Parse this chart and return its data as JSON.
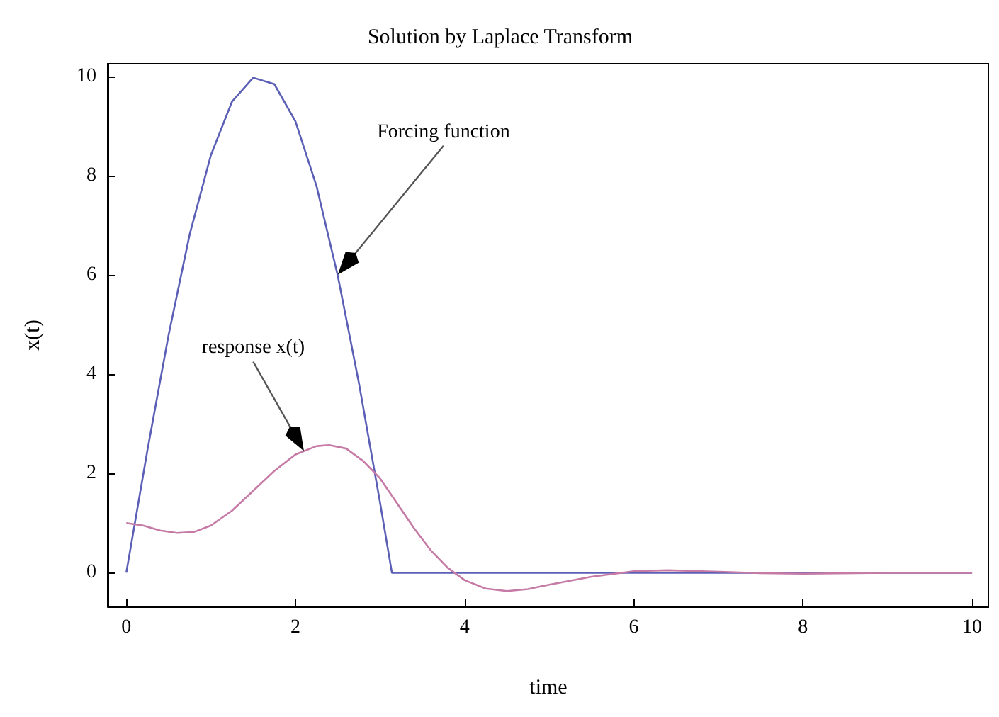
{
  "chart_data": {
    "type": "line",
    "title": "Solution by Laplace Transform",
    "xlabel": "time",
    "ylabel": "x(t)",
    "xlim": [
      -0.22,
      10.2
    ],
    "ylim": [
      -0.68,
      10.25
    ],
    "xticks": [
      0,
      2,
      4,
      6,
      8,
      10
    ],
    "yticks": [
      0,
      2,
      4,
      6,
      8,
      10
    ],
    "grid": false,
    "marker": "none",
    "line_style": "solid",
    "series": [
      {
        "color": "#5b5fb5",
        "x": [
          0,
          0.25,
          0.5,
          0.75,
          1,
          1.25,
          1.5,
          1.75,
          2,
          2.25,
          2.5,
          2.75,
          3,
          3.14,
          10
        ],
        "values": [
          0,
          2.47,
          4.79,
          6.82,
          8.41,
          9.49,
          9.97,
          9.84,
          9.09,
          7.78,
          5.98,
          3.82,
          1.41,
          0,
          0
        ]
      },
      {
        "color": "#c67aa6",
        "x": [
          0,
          0.2,
          0.4,
          0.6,
          0.8,
          1,
          1.25,
          1.5,
          1.75,
          2,
          2.25,
          2.4,
          2.6,
          2.8,
          3,
          3.2,
          3.4,
          3.6,
          3.8,
          4,
          4.25,
          4.5,
          4.75,
          5,
          5.5,
          6,
          6.4,
          7,
          7.5,
          8,
          9,
          10
        ],
        "values": [
          1,
          0.95,
          0.85,
          0.8,
          0.82,
          0.95,
          1.25,
          1.65,
          2.05,
          2.38,
          2.55,
          2.57,
          2.5,
          2.25,
          1.9,
          1.4,
          0.9,
          0.45,
          0.1,
          -0.15,
          -0.32,
          -0.37,
          -0.33,
          -0.24,
          -0.08,
          0.03,
          0.05,
          0.02,
          -0.01,
          -0.02,
          0,
          0
        ]
      }
    ],
    "annotations": [
      "Forcing function",
      "response x(t)"
    ]
  }
}
